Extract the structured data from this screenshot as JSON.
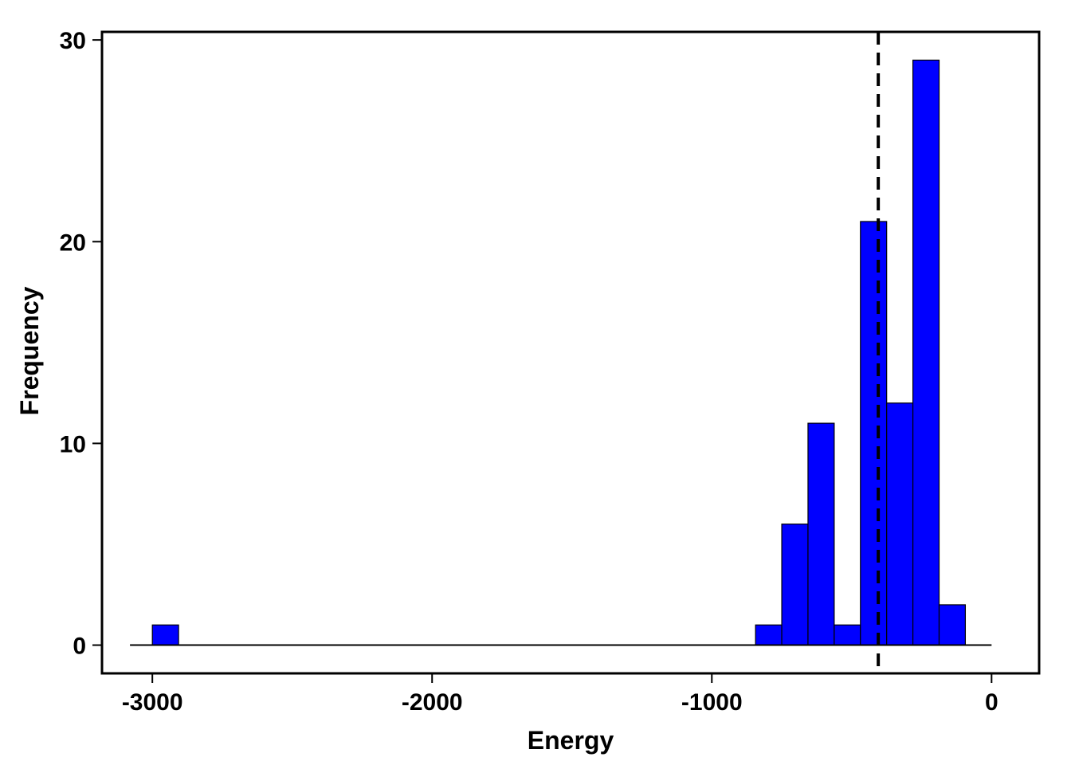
{
  "chart_data": {
    "type": "bar",
    "xlabel": "Energy",
    "ylabel": "Frequency",
    "bin_width": 93.75,
    "bins": [
      {
        "x0": -3000,
        "x1": -2906.25,
        "count": 1
      },
      {
        "x0": -843.75,
        "x1": -750,
        "count": 1
      },
      {
        "x0": -750,
        "x1": -656.25,
        "count": 6
      },
      {
        "x0": -656.25,
        "x1": -562.5,
        "count": 11
      },
      {
        "x0": -562.5,
        "x1": -468.75,
        "count": 1
      },
      {
        "x0": -468.75,
        "x1": -375,
        "count": 21
      },
      {
        "x0": -375,
        "x1": -281.25,
        "count": 12
      },
      {
        "x0": -281.25,
        "x1": -187.5,
        "count": 29
      },
      {
        "x0": -187.5,
        "x1": -93.75,
        "count": 2
      }
    ],
    "baseline_range": [
      -3080,
      0
    ],
    "mean_line": -405,
    "x_ticks": [
      -3000,
      -2000,
      -1000,
      0
    ],
    "y_ticks": [
      0,
      10,
      20,
      30
    ],
    "xlim": [
      -3180,
      170
    ],
    "ylim": [
      -1.4,
      30.4
    ],
    "grid": false,
    "colors": {
      "bar_fill": "#0000ff",
      "bar_edge": "#000000",
      "mean_line": "#000000"
    }
  }
}
